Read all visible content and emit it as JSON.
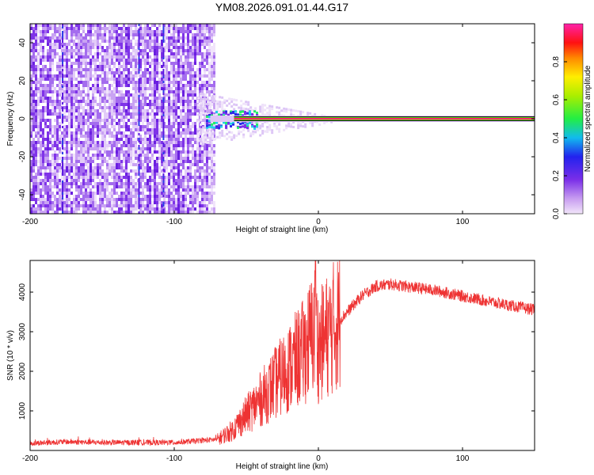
{
  "page_title": "YM08.2026.091.01.44.G17",
  "chart_data": [
    {
      "type": "heatmap",
      "title": "YM08.2026.091.01.44.G17",
      "xlabel": "Height of straight line (km)",
      "ylabel": "Frequency (Hz)",
      "xlim": [
        -200,
        150
      ],
      "ylim": [
        -50,
        50
      ],
      "xticks": [
        "-200",
        "-100",
        "0",
        "100"
      ],
      "yticks": [
        "-40",
        "-20",
        "0",
        "20",
        "40"
      ],
      "noise_region_x": [
        -200,
        -73
      ],
      "narrow_band_start_x": -75,
      "narrow_band_center_hz": 0,
      "colorbar": {
        "label": "Normalized spectral amplitude",
        "range": [
          0,
          1
        ],
        "ticks": [
          "0.0",
          "0.2",
          "0.4",
          "0.6",
          "0.8"
        ]
      }
    },
    {
      "type": "line",
      "xlabel": "Height of straight line (km)",
      "ylabel": "SNR (10 * v/v)",
      "xlim": [
        -200,
        150
      ],
      "ylim": [
        0,
        4800
      ],
      "xticks": [
        "-200",
        "-100",
        "0",
        "100"
      ],
      "yticks": [
        "1000",
        "2000",
        "3000",
        "4000"
      ],
      "series": [
        {
          "name": "SNR",
          "color": "#ee3333",
          "x": [
            -200,
            -175,
            -150,
            -100,
            -70,
            -60,
            -50,
            -40,
            -30,
            -20,
            -10,
            -2,
            0,
            10,
            20,
            30,
            40,
            50,
            60,
            80,
            100,
            120,
            150
          ],
          "y": [
            180,
            220,
            200,
            200,
            280,
            500,
            900,
            1300,
            1700,
            2100,
            2500,
            3100,
            2600,
            3100,
            3500,
            3900,
            4150,
            4200,
            4150,
            4050,
            3900,
            3750,
            3550
          ]
        }
      ]
    }
  ]
}
